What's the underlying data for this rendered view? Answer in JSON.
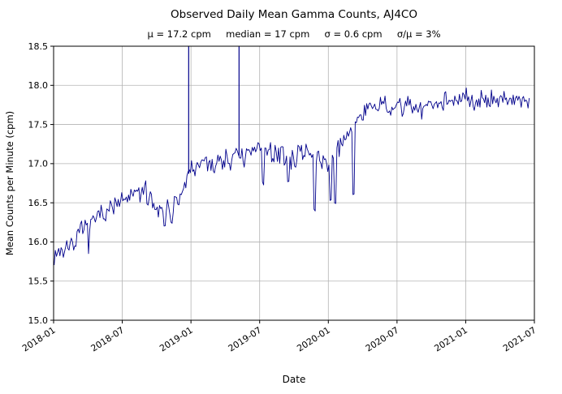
{
  "chart_data": {
    "type": "line",
    "title": "Observed Daily Mean Gamma Counts, AJ4CO",
    "stats_text": "μ = 17.2 cpm     median = 17 cpm     σ = 0.6 cpm     σ/μ = 3%",
    "stats": {
      "mu_cpm": 17.2,
      "median_cpm": 17,
      "sigma_cpm": 0.6,
      "sigma_over_mu_pct": 3
    },
    "xlabel": "Date",
    "ylabel": "Mean Counts per Minute (cpm)",
    "ylim": [
      15.0,
      18.5
    ],
    "yticks": [
      15.0,
      15.5,
      16.0,
      16.5,
      17.0,
      17.5,
      18.0,
      18.5
    ],
    "x_range_months": [
      0,
      42
    ],
    "xticks_months": [
      0,
      6,
      12,
      18,
      24,
      30,
      36,
      42
    ],
    "xtick_labels": [
      "2018-01",
      "2018-07",
      "2019-01",
      "2019-07",
      "2020-01",
      "2020-07",
      "2021-01",
      "2021-07"
    ],
    "grid": true,
    "legend": "none",
    "line_color": "#00008b",
    "grid_color": "#b3b3b3",
    "series_name": "daily mean gamma counts",
    "monthly_trend_months": [
      "2018-01",
      "2018-02",
      "2018-03",
      "2018-04",
      "2018-05",
      "2018-06",
      "2018-07",
      "2018-08",
      "2018-09",
      "2018-10",
      "2018-11",
      "2018-12",
      "2019-01",
      "2019-02",
      "2019-03",
      "2019-04",
      "2019-05",
      "2019-06",
      "2019-07",
      "2019-08",
      "2019-09",
      "2019-10",
      "2019-11",
      "2019-12",
      "2020-01",
      "2020-02",
      "2020-03",
      "2020-04",
      "2020-05",
      "2020-06",
      "2020-07",
      "2020-08",
      "2020-09",
      "2020-10",
      "2020-11",
      "2020-12",
      "2021-01",
      "2021-02",
      "2021-03",
      "2021-04",
      "2021-05",
      "2021-06"
    ],
    "monthly_trend_cpm": [
      15.85,
      15.9,
      16.05,
      16.2,
      16.35,
      16.45,
      16.5,
      16.6,
      16.65,
      16.45,
      16.4,
      16.55,
      16.95,
      17.0,
      17.0,
      17.05,
      17.1,
      17.1,
      17.2,
      17.15,
      17.1,
      17.05,
      17.15,
      17.1,
      17.0,
      17.2,
      17.45,
      17.65,
      17.7,
      17.75,
      17.7,
      17.75,
      17.7,
      17.75,
      17.8,
      17.8,
      17.85,
      17.8,
      17.85,
      17.8,
      17.85,
      17.8
    ],
    "noise_cpm": 0.1,
    "down_spike_prob": 0.03,
    "down_spike_max": 0.25,
    "clipped_spike_months": [
      11.8,
      16.2
    ],
    "dip_events": [
      {
        "month": 9.7,
        "value_cpm": 16.22
      },
      {
        "month": 10.3,
        "value_cpm": 16.25
      },
      {
        "month": 18.3,
        "value_cpm": 16.75
      },
      {
        "month": 20.5,
        "value_cpm": 16.78
      },
      {
        "month": 22.8,
        "value_cpm": 16.42
      },
      {
        "month": 24.2,
        "value_cpm": 16.55
      },
      {
        "month": 24.6,
        "value_cpm": 16.5
      },
      {
        "month": 26.2,
        "value_cpm": 16.6
      }
    ]
  }
}
